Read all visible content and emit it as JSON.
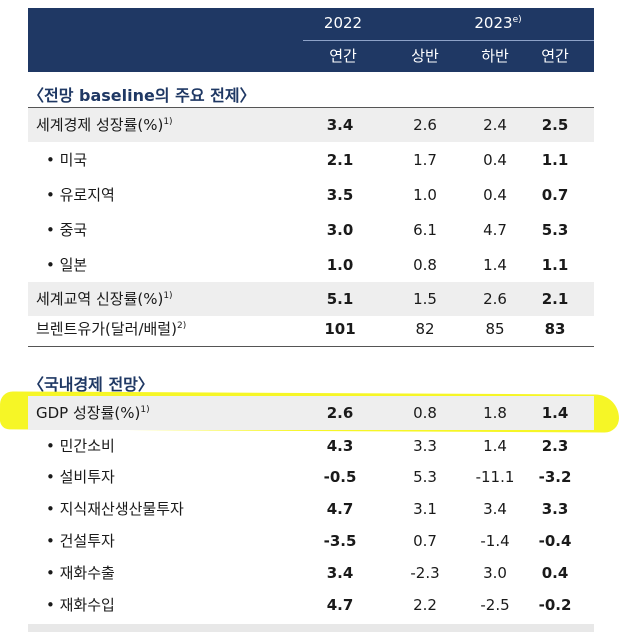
{
  "header": {
    "year_2022": "2022",
    "year_2023": "2023",
    "year_2023_note": "e)",
    "col_annual_2022": "연간",
    "col_h1": "상반",
    "col_h2": "하반",
    "col_annual_2023": "연간"
  },
  "section1": {
    "title": "〈전망 baseline의 주요 전제〉",
    "rows": [
      {
        "label": "세계경제 성장률(%)",
        "note": "1)",
        "v2022": "3.4",
        "h1": "2.6",
        "h2": "2.4",
        "a2023": "2.5"
      },
      {
        "label": "• 미국",
        "v2022": "2.1",
        "h1": "1.7",
        "h2": "0.4",
        "a2023": "1.1"
      },
      {
        "label": "• 유로지역",
        "v2022": "3.5",
        "h1": "1.0",
        "h2": "0.4",
        "a2023": "0.7"
      },
      {
        "label": "• 중국",
        "v2022": "3.0",
        "h1": "6.1",
        "h2": "4.7",
        "a2023": "5.3"
      },
      {
        "label": "• 일본",
        "v2022": "1.0",
        "h1": "0.8",
        "h2": "1.4",
        "a2023": "1.1"
      },
      {
        "label": "세계교역 신장률(%)",
        "note": "1)",
        "v2022": "5.1",
        "h1": "1.5",
        "h2": "2.6",
        "a2023": "2.1"
      },
      {
        "label": "브렌트유가(달러/배럴)",
        "note": "2)",
        "v2022": "101",
        "h1": "82",
        "h2": "85",
        "a2023": "83"
      }
    ]
  },
  "section2": {
    "title": "〈국내경제 전망〉",
    "rows": [
      {
        "label": "GDP 성장률(%)",
        "note": "1)",
        "v2022": "2.6",
        "h1": "0.8",
        "h2": "1.8",
        "a2023": "1.4"
      },
      {
        "label": "• 민간소비",
        "v2022": "4.3",
        "h1": "3.3",
        "h2": "1.4",
        "a2023": "2.3"
      },
      {
        "label": "• 설비투자",
        "v2022": "-0.5",
        "h1": "5.3",
        "h2": "-11.1",
        "a2023": "-3.2"
      },
      {
        "label": "• 지식재산생산물투자",
        "v2022": "4.7",
        "h1": "3.1",
        "h2": "3.4",
        "a2023": "3.3"
      },
      {
        "label": "• 건설투자",
        "v2022": "-3.5",
        "h1": "0.7",
        "h2": "-1.4",
        "a2023": "-0.4"
      },
      {
        "label": "• 재화수출",
        "v2022": "3.4",
        "h1": "-2.3",
        "h2": "3.0",
        "a2023": "0.4"
      },
      {
        "label": "• 재화수입",
        "v2022": "4.7",
        "h1": "2.2",
        "h2": "-2.5",
        "a2023": "-0.2"
      }
    ]
  },
  "colors": {
    "header_bg": "#1f3864",
    "highlight": "#f4f400",
    "shade": "#eeeeee"
  }
}
